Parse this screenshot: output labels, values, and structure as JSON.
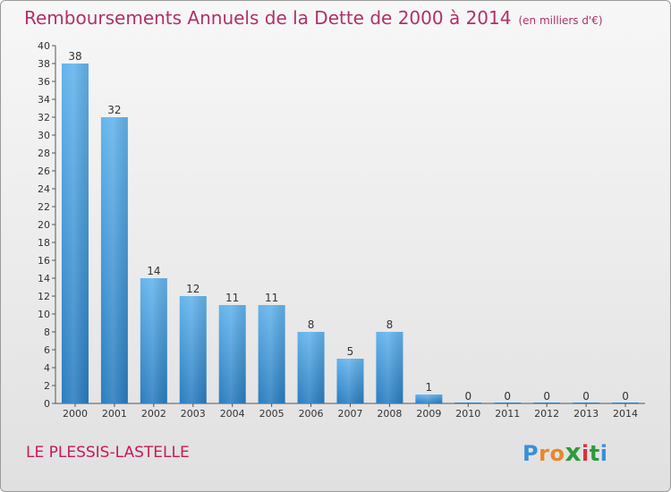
{
  "header": {
    "title": "Remboursements Annuels de la Dette de 2000 à 2014",
    "subtitle": "(en milliers d'€)"
  },
  "footer": {
    "commune": "LE PLESSIS-LASTELLE",
    "logo_letters": [
      "P",
      "r",
      "o",
      "x",
      "i",
      "t",
      "i"
    ]
  },
  "colors": {
    "title": "#b0306a",
    "commune": "#c8185a",
    "bar_top": "#64b4ec",
    "bar_bottom": "#2a7dc0"
  },
  "chart_data": {
    "type": "bar",
    "title": "Remboursements Annuels de la Dette de 2000 à 2014",
    "subtitle": "(en milliers d'€)",
    "xlabel": "",
    "ylabel": "",
    "categories": [
      "2000",
      "2001",
      "2002",
      "2003",
      "2004",
      "2005",
      "2006",
      "2007",
      "2008",
      "2009",
      "2010",
      "2011",
      "2012",
      "2013",
      "2014"
    ],
    "values": [
      38,
      32,
      14,
      12,
      11,
      11,
      8,
      5,
      8,
      1,
      0,
      0,
      0,
      0,
      0
    ],
    "ylim": [
      0,
      40
    ],
    "yticks": [
      0,
      2,
      4,
      6,
      8,
      10,
      12,
      14,
      16,
      18,
      20,
      22,
      24,
      26,
      28,
      30,
      32,
      34,
      36,
      38,
      40
    ],
    "grid": false,
    "legend": "none"
  }
}
